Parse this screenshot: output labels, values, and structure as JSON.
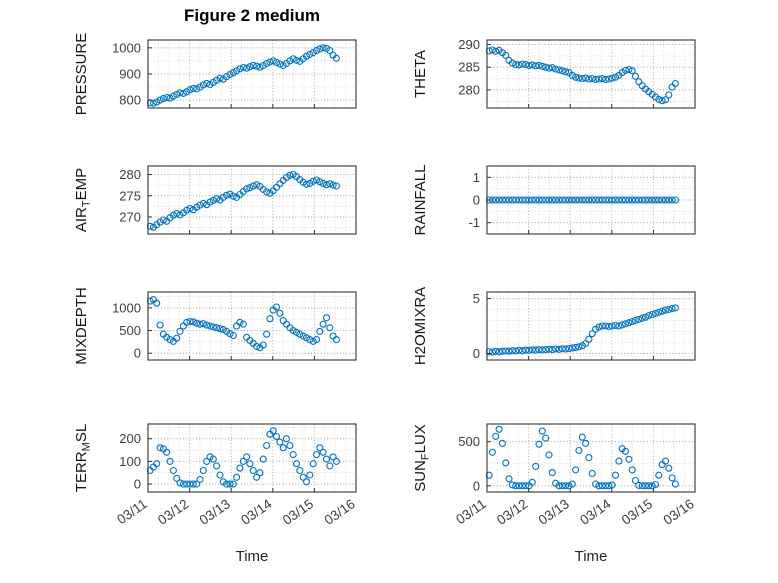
{
  "chart_data": {
    "type": "scatter",
    "title": "Figure 2 medium",
    "xlabel": "Time",
    "marker": "o",
    "x_tick_labels": [
      "03/11",
      "03/12",
      "03/13",
      "03/14",
      "03/15",
      "03/16"
    ],
    "x_tick_positions": [
      0,
      1,
      2,
      3,
      4,
      5
    ],
    "xlim": [
      0,
      5
    ],
    "x_minor_step": 0.25,
    "x_description": "days after 03/11 00:00",
    "style": {
      "marker_color": "#0072BD",
      "axis_color": "#333333",
      "major_grid_color": "#ababab",
      "minor_grid_color": "#d9d9d9",
      "tick_label_color": "#404040",
      "label_color": "#171717"
    },
    "x": [
      0.05,
      0.13,
      0.21,
      0.29,
      0.37,
      0.45,
      0.53,
      0.61,
      0.69,
      0.77,
      0.85,
      0.93,
      1.01,
      1.09,
      1.17,
      1.25,
      1.33,
      1.41,
      1.49,
      1.57,
      1.65,
      1.73,
      1.81,
      1.89,
      1.97,
      2.05,
      2.13,
      2.21,
      2.29,
      2.37,
      2.45,
      2.53,
      2.61,
      2.69,
      2.77,
      2.85,
      2.93,
      3.01,
      3.09,
      3.17,
      3.25,
      3.33,
      3.41,
      3.49,
      3.57,
      3.65,
      3.73,
      3.81,
      3.89,
      3.97,
      4.05,
      4.13,
      4.21,
      4.29,
      4.37,
      4.45,
      4.53
    ],
    "subplots": [
      {
        "id": "pressure",
        "ylabel_text": "PRESSURE",
        "ylabel": {
          "pre": "PRESSURE",
          "sub": "",
          "post": ""
        },
        "ylim": [
          770,
          1030
        ],
        "yticks": [
          800,
          900,
          1000
        ],
        "y_minor_step": 50,
        "values": [
          790,
          788,
          793,
          800,
          806,
          810,
          808,
          815,
          822,
          828,
          826,
          832,
          840,
          845,
          843,
          850,
          858,
          864,
          860,
          868,
          876,
          884,
          880,
          890,
          898,
          905,
          912,
          920,
          925,
          922,
          928,
          933,
          930,
          926,
          932,
          940,
          946,
          950,
          944,
          938,
          933,
          940,
          950,
          958,
          952,
          948,
          958,
          968,
          975,
          982,
          990,
          996,
          1000,
          998,
          990,
          972,
          960
        ]
      },
      {
        "id": "theta",
        "ylabel_text": "THETA",
        "ylabel": {
          "pre": "THETA",
          "sub": "",
          "post": ""
        },
        "ylim": [
          276,
          291
        ],
        "yticks": [
          280,
          285,
          290
        ],
        "y_minor_step": 2.5,
        "values": [
          288.6,
          288.8,
          288.5,
          288.7,
          288.2,
          287.6,
          286.5,
          285.9,
          285.6,
          285.5,
          285.7,
          285.6,
          285.4,
          285.5,
          285.3,
          285.4,
          285.2,
          285.0,
          284.8,
          284.9,
          284.6,
          284.4,
          284.2,
          284.0,
          283.8,
          283.2,
          282.8,
          282.6,
          282.5,
          282.6,
          282.4,
          282.5,
          282.3,
          282.4,
          282.5,
          282.3,
          282.4,
          282.6,
          282.8,
          283.2,
          283.8,
          284.3,
          284.5,
          284.2,
          283.0,
          281.8,
          280.9,
          280.2,
          279.6,
          279.0,
          278.4,
          277.9,
          277.6,
          277.8,
          278.9,
          280.6,
          281.4
        ]
      },
      {
        "id": "air-temp",
        "ylabel_text": "AIR_TEMP",
        "ylabel": {
          "pre": "AIR",
          "sub": "T",
          "post": "EMP"
        },
        "ylim": [
          266,
          282
        ],
        "yticks": [
          270,
          275,
          280
        ],
        "y_minor_step": 2.5,
        "values": [
          267.8,
          267.6,
          268.2,
          268.8,
          269.3,
          269.0,
          269.8,
          270.4,
          270.8,
          270.5,
          271.0,
          271.6,
          272.0,
          271.7,
          272.3,
          272.8,
          273.2,
          272.9,
          273.5,
          273.9,
          274.3,
          274.0,
          274.6,
          275.1,
          275.4,
          274.9,
          274.6,
          275.3,
          276.0,
          276.6,
          276.9,
          277.3,
          277.6,
          277.2,
          276.5,
          275.9,
          275.6,
          276.2,
          277.0,
          277.8,
          278.6,
          279.3,
          279.8,
          280.0,
          279.5,
          278.8,
          278.2,
          277.7,
          277.9,
          278.4,
          278.7,
          278.3,
          277.9,
          277.6,
          277.8,
          277.5,
          277.3
        ]
      },
      {
        "id": "rainfall",
        "ylabel_text": "RAINFALL",
        "ylabel": {
          "pre": "RAINFALL",
          "sub": "",
          "post": ""
        },
        "ylim": [
          -1.5,
          1.5
        ],
        "yticks": [
          -1,
          0,
          1
        ],
        "y_minor_step": 0.5,
        "values": [
          0,
          0,
          0,
          0,
          0,
          0,
          0,
          0,
          0,
          0,
          0,
          0,
          0,
          0,
          0,
          0,
          0,
          0,
          0,
          0,
          0,
          0,
          0,
          0,
          0,
          0,
          0,
          0,
          0,
          0,
          0,
          0,
          0,
          0,
          0,
          0,
          0,
          0,
          0,
          0,
          0,
          0,
          0,
          0,
          0,
          0,
          0,
          0,
          0,
          0,
          0,
          0,
          0,
          0,
          0,
          0,
          0
        ]
      },
      {
        "id": "mixdepth",
        "ylabel_text": "MIXDEPTH",
        "ylabel": {
          "pre": "MIXDEPTH",
          "sub": "",
          "post": ""
        },
        "ylim": [
          -150,
          1350
        ],
        "yticks": [
          0,
          500,
          1000
        ],
        "y_minor_step": 250,
        "values": [
          1150,
          1180,
          1100,
          620,
          420,
          350,
          300,
          260,
          330,
          480,
          600,
          680,
          700,
          690,
          660,
          640,
          650,
          620,
          600,
          580,
          560,
          540,
          520,
          480,
          430,
          390,
          600,
          680,
          640,
          350,
          280,
          220,
          150,
          120,
          180,
          420,
          760,
          950,
          1020,
          880,
          720,
          640,
          560,
          500,
          460,
          420,
          380,
          340,
          300,
          260,
          300,
          480,
          640,
          780,
          560,
          380,
          300
        ]
      },
      {
        "id": "h2omixra",
        "ylabel_text": "H2OMIXRA",
        "ylabel": {
          "pre": "H2OMIXRA",
          "sub": "",
          "post": ""
        },
        "ylim": [
          -0.6,
          5.6
        ],
        "yticks": [
          0,
          5
        ],
        "y_minor_step": 1,
        "values": [
          0.15,
          0.12,
          0.18,
          0.15,
          0.2,
          0.22,
          0.2,
          0.25,
          0.22,
          0.28,
          0.25,
          0.3,
          0.28,
          0.32,
          0.3,
          0.35,
          0.32,
          0.35,
          0.38,
          0.35,
          0.4,
          0.38,
          0.42,
          0.4,
          0.45,
          0.5,
          0.55,
          0.6,
          0.7,
          0.9,
          1.3,
          1.8,
          2.2,
          2.4,
          2.5,
          2.5,
          2.45,
          2.5,
          2.55,
          2.5,
          2.6,
          2.7,
          2.8,
          2.9,
          3.0,
          3.1,
          3.2,
          3.3,
          3.45,
          3.55,
          3.65,
          3.75,
          3.85,
          3.95,
          4.0,
          4.1,
          4.15
        ]
      },
      {
        "id": "terr-msl",
        "ylabel_text": "TERR_MSL",
        "ylabel": {
          "pre": "TERR",
          "sub": "M",
          "post": "SL"
        },
        "ylim": [
          -35,
          265
        ],
        "yticks": [
          0,
          100,
          200
        ],
        "y_minor_step": 50,
        "values": [
          60,
          75,
          90,
          160,
          155,
          140,
          100,
          60,
          25,
          5,
          0,
          0,
          0,
          0,
          0,
          20,
          60,
          100,
          120,
          110,
          80,
          40,
          10,
          0,
          0,
          0,
          30,
          70,
          100,
          120,
          90,
          60,
          30,
          50,
          110,
          170,
          220,
          235,
          210,
          185,
          160,
          200,
          170,
          130,
          90,
          60,
          30,
          10,
          40,
          90,
          130,
          160,
          140,
          110,
          80,
          120,
          100
        ]
      },
      {
        "id": "sun-flux",
        "ylabel_text": "SUN_FLUX",
        "ylabel": {
          "pre": "SUN",
          "sub": "F",
          "post": "LUX"
        },
        "ylim": [
          -70,
          700
        ],
        "yticks": [
          0,
          500
        ],
        "y_minor_step": 250,
        "values": [
          120,
          380,
          560,
          640,
          480,
          260,
          80,
          10,
          0,
          0,
          0,
          0,
          0,
          40,
          220,
          470,
          620,
          540,
          350,
          150,
          30,
          0,
          0,
          0,
          0,
          20,
          180,
          400,
          550,
          480,
          320,
          140,
          20,
          0,
          0,
          0,
          0,
          10,
          120,
          280,
          420,
          390,
          300,
          180,
          60,
          5,
          0,
          0,
          0,
          0,
          15,
          120,
          240,
          280,
          200,
          90,
          20
        ]
      }
    ]
  }
}
